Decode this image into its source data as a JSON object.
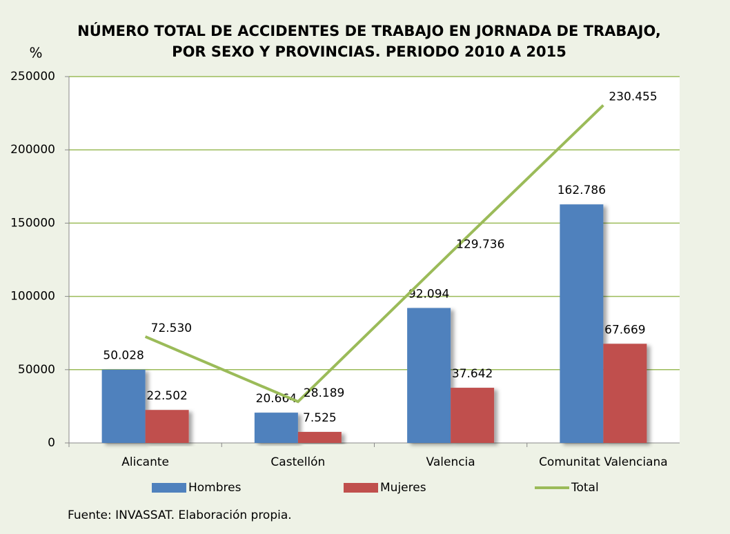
{
  "chart_data": {
    "type": "bar",
    "title": [
      "NÚMERO TOTAL DE ACCIDENTES DE TRABAJO EN JORNADA DE TRABAJO,",
      "POR SEXO Y PROVINCIAS. PERIODO 2010 A 2015"
    ],
    "y_label": "%",
    "source": "Fuente: INVASSAT. Elaboración propia.",
    "categories": [
      "Alicante",
      "Castellón",
      "Valencia",
      "Comunitat Valenciana"
    ],
    "series": [
      {
        "name": "Hombres",
        "type": "bar",
        "color": "#4f81bd",
        "values": [
          50028,
          20664,
          92094,
          162786
        ],
        "value_labels": [
          "50.028",
          "20.664",
          "92.094",
          "162.786"
        ]
      },
      {
        "name": "Mujeres",
        "type": "bar",
        "color": "#c0504d",
        "values": [
          22502,
          7525,
          37642,
          67669
        ],
        "value_labels": [
          "22.502",
          "7.525",
          "37.642",
          "67.669"
        ]
      },
      {
        "name": "Total",
        "type": "line",
        "color": "#9bbb59",
        "values": [
          72530,
          28189,
          129736,
          230455
        ],
        "value_labels": [
          "72.530",
          "28.189",
          "129.736",
          "230.455"
        ]
      }
    ],
    "ylim": [
      0,
      250000
    ],
    "yticks": [
      0,
      50000,
      100000,
      150000,
      200000,
      250000
    ],
    "grid": true,
    "grid_color": "#9bbb59",
    "legend": "bottom"
  }
}
